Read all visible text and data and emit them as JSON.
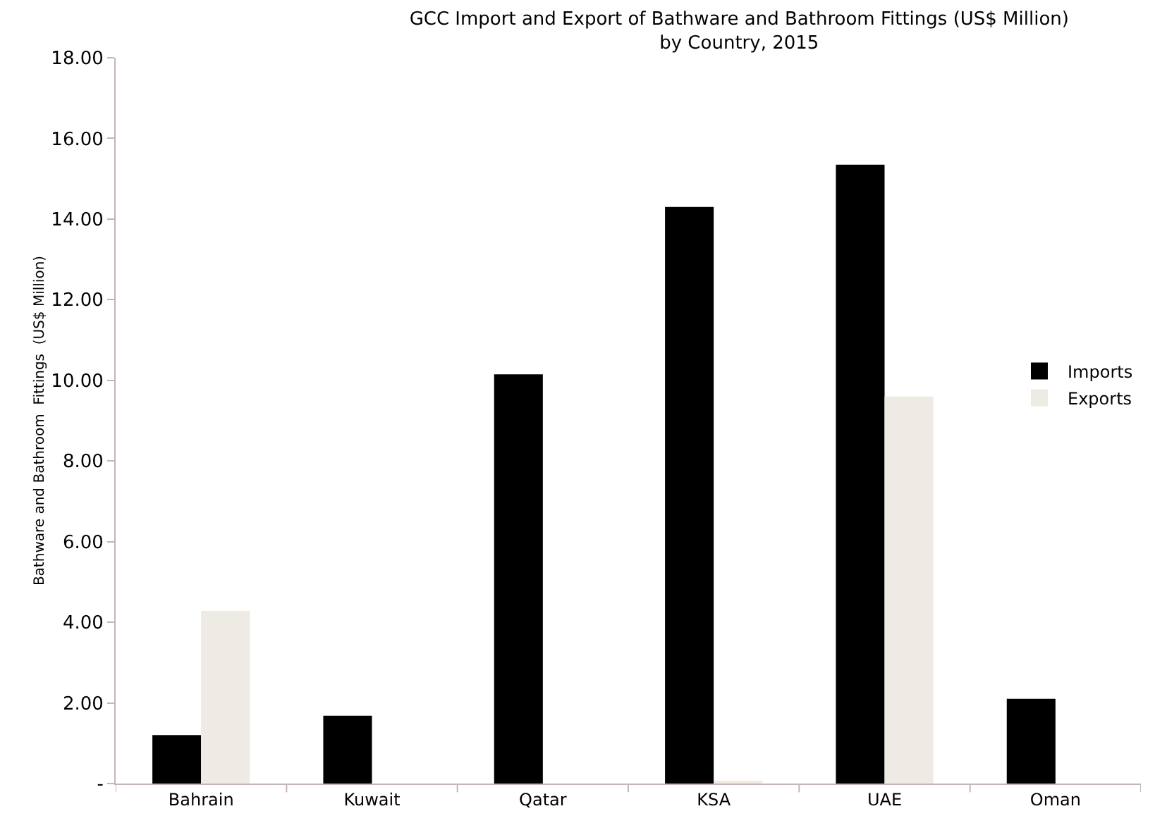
{
  "chart_data": {
    "type": "bar",
    "title": "GCC Import and Export of Bathware and Bathroom Fittings (US$ Million)\nby Country, 2015",
    "ylabel": "Bathware and Bathroom  Fittings  (US$ Million)",
    "categories": [
      "Bahrain",
      "Kuwait",
      "Qatar",
      "KSA",
      "UAE",
      "Oman"
    ],
    "series": [
      {
        "name": "Imports",
        "color": "#000000",
        "values": [
          1.2,
          1.68,
          10.15,
          14.3,
          15.35,
          2.1
        ]
      },
      {
        "name": "Exports",
        "color": "#eeebe5",
        "values": [
          4.28,
          null,
          null,
          0.05,
          9.6,
          null
        ]
      }
    ],
    "ylim": [
      0,
      18
    ],
    "yticks": [
      {
        "value": 0,
        "label": "-"
      },
      {
        "value": 2,
        "label": "2.00"
      },
      {
        "value": 4,
        "label": "4.00"
      },
      {
        "value": 6,
        "label": "6.00"
      },
      {
        "value": 8,
        "label": "8.00"
      },
      {
        "value": 10,
        "label": "10.00"
      },
      {
        "value": 12,
        "label": "12.00"
      },
      {
        "value": 14,
        "label": "14.00"
      },
      {
        "value": 16,
        "label": "16.00"
      },
      {
        "value": 18,
        "label": "18.00"
      }
    ],
    "grid": false,
    "legend": "right"
  }
}
